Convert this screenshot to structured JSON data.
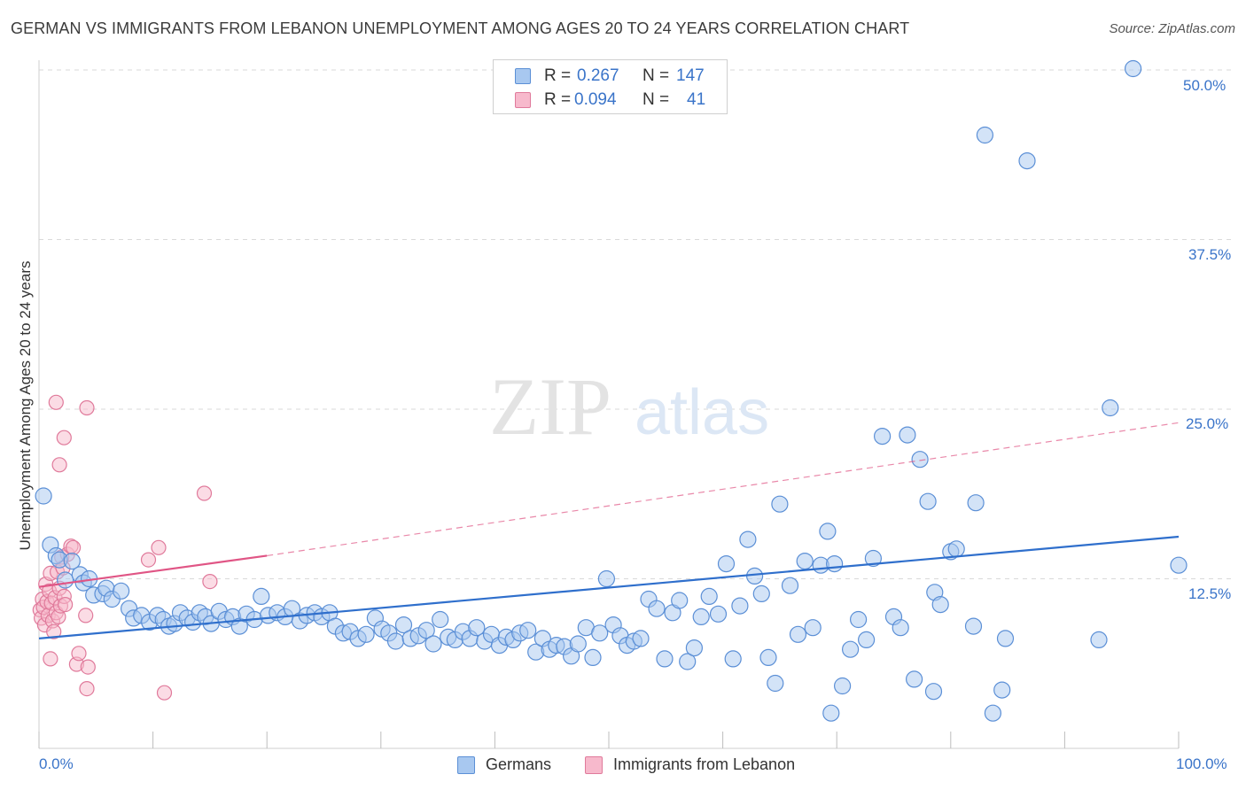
{
  "title": "GERMAN VS IMMIGRANTS FROM LEBANON UNEMPLOYMENT AMONG AGES 20 TO 24 YEARS CORRELATION CHART",
  "source": "Source: ZipAtlas.com",
  "watermark": {
    "zip": "ZIP",
    "atlas": "atlas"
  },
  "legend_top": {
    "rows": [
      {
        "r_label": "R =",
        "r_value": "0.267",
        "n_label": "N =",
        "n_value": "147"
      },
      {
        "r_label": "R =",
        "r_value": "0.094",
        "n_label": "N =",
        "n_value": "41"
      }
    ]
  },
  "legend_bottom": {
    "series1": "Germans",
    "series2": "Immigrants from Lebanon"
  },
  "colors": {
    "germans_fill": "#a8c8f0",
    "germans_stroke": "#5b8fd6",
    "germans_line": "#2f6fcc",
    "lebanon_fill": "#f7b9cc",
    "lebanon_stroke": "#e07a9b",
    "lebanon_line": "#e05585",
    "grid": "#d9d9d9",
    "axis_text": "#3a74c9"
  },
  "chart_data": {
    "type": "scatter",
    "xlabel": "",
    "ylabel": "Unemployment Among Ages 20 to 24 years",
    "x_ticks": [
      "0.0%",
      "100.0%"
    ],
    "y_ticks": [
      "12.5%",
      "25.0%",
      "37.5%",
      "50.0%"
    ],
    "xlim": [
      0,
      100
    ],
    "ylim": [
      0,
      50
    ],
    "grid": "horizontal dashed",
    "legend": "top-center",
    "series": [
      {
        "name": "Germans",
        "trend": {
          "x": [
            0,
            100
          ],
          "y": [
            8.1,
            15.6
          ],
          "style": "solid"
        },
        "points": [
          [
            0.4,
            18.6
          ],
          [
            1.0,
            15.0
          ],
          [
            1.5,
            14.2
          ],
          [
            1.8,
            13.9
          ],
          [
            2.3,
            12.4
          ],
          [
            2.9,
            13.8
          ],
          [
            3.6,
            12.8
          ],
          [
            3.9,
            12.2
          ],
          [
            4.4,
            12.5
          ],
          [
            4.8,
            11.3
          ],
          [
            5.6,
            11.4
          ],
          [
            5.9,
            11.8
          ],
          [
            6.4,
            11.0
          ],
          [
            7.2,
            11.6
          ],
          [
            7.9,
            10.3
          ],
          [
            8.3,
            9.6
          ],
          [
            9.0,
            9.8
          ],
          [
            9.7,
            9.3
          ],
          [
            10.4,
            9.8
          ],
          [
            10.9,
            9.5
          ],
          [
            11.4,
            9.0
          ],
          [
            11.9,
            9.2
          ],
          [
            12.4,
            10.0
          ],
          [
            13.0,
            9.6
          ],
          [
            13.5,
            9.3
          ],
          [
            14.1,
            10.0
          ],
          [
            14.6,
            9.7
          ],
          [
            15.1,
            9.2
          ],
          [
            15.8,
            10.1
          ],
          [
            16.4,
            9.5
          ],
          [
            17.0,
            9.7
          ],
          [
            17.6,
            9.0
          ],
          [
            18.2,
            9.9
          ],
          [
            18.9,
            9.5
          ],
          [
            19.5,
            11.2
          ],
          [
            20.1,
            9.8
          ],
          [
            20.9,
            10.0
          ],
          [
            21.6,
            9.7
          ],
          [
            22.2,
            10.3
          ],
          [
            22.9,
            9.4
          ],
          [
            23.5,
            9.8
          ],
          [
            24.2,
            10.0
          ],
          [
            24.8,
            9.7
          ],
          [
            25.5,
            10.0
          ],
          [
            26.0,
            9.0
          ],
          [
            26.7,
            8.5
          ],
          [
            27.3,
            8.6
          ],
          [
            28.0,
            8.1
          ],
          [
            28.7,
            8.4
          ],
          [
            29.5,
            9.6
          ],
          [
            30.1,
            8.8
          ],
          [
            30.7,
            8.5
          ],
          [
            31.3,
            7.9
          ],
          [
            32.0,
            9.1
          ],
          [
            32.6,
            8.1
          ],
          [
            33.3,
            8.3
          ],
          [
            34.0,
            8.7
          ],
          [
            34.6,
            7.7
          ],
          [
            35.2,
            9.5
          ],
          [
            35.9,
            8.2
          ],
          [
            36.5,
            8.0
          ],
          [
            37.2,
            8.6
          ],
          [
            37.8,
            8.1
          ],
          [
            38.4,
            8.9
          ],
          [
            39.1,
            7.9
          ],
          [
            39.7,
            8.4
          ],
          [
            40.4,
            7.6
          ],
          [
            41.0,
            8.2
          ],
          [
            41.6,
            8.0
          ],
          [
            42.2,
            8.5
          ],
          [
            42.9,
            8.7
          ],
          [
            43.6,
            7.1
          ],
          [
            44.2,
            8.1
          ],
          [
            44.8,
            7.3
          ],
          [
            45.4,
            7.6
          ],
          [
            46.1,
            7.5
          ],
          [
            46.7,
            6.8
          ],
          [
            47.3,
            7.7
          ],
          [
            48.0,
            8.9
          ],
          [
            48.6,
            6.7
          ],
          [
            49.2,
            8.5
          ],
          [
            49.8,
            12.5
          ],
          [
            50.4,
            9.1
          ],
          [
            51.0,
            8.3
          ],
          [
            51.6,
            7.6
          ],
          [
            52.2,
            7.9
          ],
          [
            52.8,
            8.1
          ],
          [
            53.5,
            11.0
          ],
          [
            54.2,
            10.3
          ],
          [
            54.9,
            6.6
          ],
          [
            55.6,
            10.0
          ],
          [
            56.2,
            10.9
          ],
          [
            56.9,
            6.4
          ],
          [
            57.5,
            7.4
          ],
          [
            58.1,
            9.7
          ],
          [
            58.8,
            11.2
          ],
          [
            59.6,
            9.9
          ],
          [
            60.3,
            13.6
          ],
          [
            60.9,
            6.6
          ],
          [
            61.5,
            10.5
          ],
          [
            62.2,
            15.4
          ],
          [
            62.8,
            12.7
          ],
          [
            63.4,
            11.4
          ],
          [
            64.0,
            6.7
          ],
          [
            64.6,
            4.8
          ],
          [
            65.0,
            18.0
          ],
          [
            65.9,
            12.0
          ],
          [
            66.6,
            8.4
          ],
          [
            67.2,
            13.8
          ],
          [
            67.9,
            8.9
          ],
          [
            68.6,
            13.5
          ],
          [
            69.2,
            16.0
          ],
          [
            69.8,
            13.6
          ],
          [
            70.5,
            4.6
          ],
          [
            71.2,
            7.3
          ],
          [
            71.9,
            9.5
          ],
          [
            72.6,
            8.0
          ],
          [
            73.2,
            14.0
          ],
          [
            74.0,
            23.0
          ],
          [
            75.0,
            9.7
          ],
          [
            75.6,
            8.9
          ],
          [
            76.2,
            23.1
          ],
          [
            76.8,
            5.1
          ],
          [
            77.3,
            21.3
          ],
          [
            78.0,
            18.2
          ],
          [
            78.6,
            11.5
          ],
          [
            79.1,
            10.6
          ],
          [
            80.0,
            14.5
          ],
          [
            80.5,
            14.7
          ],
          [
            82.0,
            9.0
          ],
          [
            82.2,
            18.1
          ],
          [
            83.0,
            45.2
          ],
          [
            84.5,
            4.3
          ],
          [
            84.8,
            8.1
          ],
          [
            86.7,
            43.3
          ],
          [
            93.0,
            8.0
          ],
          [
            94.0,
            25.1
          ],
          [
            96.0,
            50.1
          ],
          [
            100.0,
            13.5
          ],
          [
            78.5,
            4.2
          ],
          [
            69.5,
            2.6
          ],
          [
            83.7,
            2.6
          ]
        ]
      },
      {
        "name": "Immigrants from Lebanon",
        "trend": {
          "x": [
            0,
            20
          ],
          "y": [
            11.9,
            14.2
          ],
          "style": "solid",
          "extended": {
            "x": [
              20,
              100
            ],
            "y": [
              14.2,
              24.0
            ],
            "style": "dashed"
          }
        },
        "points": [
          [
            0.1,
            10.2
          ],
          [
            0.2,
            9.6
          ],
          [
            0.3,
            11.0
          ],
          [
            0.4,
            10.4
          ],
          [
            0.5,
            9.1
          ],
          [
            0.6,
            12.1
          ],
          [
            0.7,
            10.8
          ],
          [
            0.8,
            9.8
          ],
          [
            0.9,
            11.6
          ],
          [
            1.0,
            12.9
          ],
          [
            1.1,
            10.7
          ],
          [
            1.2,
            9.4
          ],
          [
            1.3,
            8.6
          ],
          [
            1.4,
            11.1
          ],
          [
            1.5,
            10.0
          ],
          [
            1.6,
            13.0
          ],
          [
            1.7,
            9.7
          ],
          [
            1.8,
            11.8
          ],
          [
            1.9,
            10.5
          ],
          [
            2.0,
            14.1
          ],
          [
            2.1,
            13.3
          ],
          [
            2.2,
            11.2
          ],
          [
            2.3,
            10.6
          ],
          [
            1.5,
            25.5
          ],
          [
            1.8,
            20.9
          ],
          [
            2.2,
            22.9
          ],
          [
            2.5,
            14.3
          ],
          [
            2.8,
            14.9
          ],
          [
            3.0,
            14.8
          ],
          [
            3.3,
            6.2
          ],
          [
            3.5,
            7.0
          ],
          [
            4.2,
            4.4
          ],
          [
            4.3,
            6.0
          ],
          [
            4.1,
            9.8
          ],
          [
            1.0,
            6.6
          ],
          [
            4.2,
            25.1
          ],
          [
            9.6,
            13.9
          ],
          [
            10.5,
            14.8
          ],
          [
            11.0,
            4.1
          ],
          [
            14.5,
            18.8
          ],
          [
            15.0,
            12.3
          ]
        ]
      }
    ]
  }
}
